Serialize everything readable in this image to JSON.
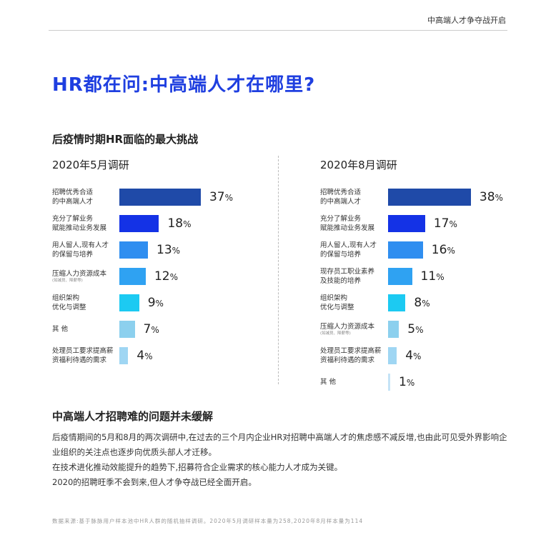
{
  "header": {
    "tag": "中高端人才争夺战开启"
  },
  "main_title": "HR都在问:中高端人才在哪里?",
  "section1_title": "后疫情时期HR面临的最大挑战",
  "chart_data": [
    {
      "type": "bar",
      "title": "2020年5月调研",
      "unit": "%",
      "xlim": [
        0,
        40
      ],
      "categories": [
        "招聘优秀合适\n的中高端人才",
        "充分了解业务\n赋能推动业务发展",
        "用人留人,现有人才\n的保留与培养",
        "压缩人力资源成本",
        "组织架构\n优化与调整",
        "其 他",
        "处理员工要求提高薪\n资福利待遇的需求"
      ],
      "notes": [
        "",
        "",
        "",
        "(如减员、降薪等)",
        "",
        "",
        ""
      ],
      "values": [
        37,
        18,
        13,
        12,
        9,
        7,
        4
      ],
      "colors": [
        "#1f4aa8",
        "#1432e6",
        "#2f8ef0",
        "#2fa2f2",
        "#1ccaf2",
        "#8cd0ee",
        "#9fd6f3"
      ]
    },
    {
      "type": "bar",
      "title": "2020年8月调研",
      "unit": "%",
      "xlim": [
        0,
        40
      ],
      "categories": [
        "招聘优秀合适\n的中高端人才",
        "充分了解业务\n赋能推动业务发展",
        "用人留人,现有人才\n的保留与培养",
        "现存员工职业素养\n及技能的培养",
        "组织架构\n优化与调整",
        "压缩人力资源成本",
        "处理员工要求提高薪\n资福利待遇的需求",
        "其 他"
      ],
      "notes": [
        "",
        "",
        "",
        "",
        "",
        "(如减员、降薪等)",
        "",
        ""
      ],
      "values": [
        38,
        17,
        16,
        11,
        8,
        5,
        4,
        1
      ],
      "colors": [
        "#1f4aa8",
        "#1432e6",
        "#2f8ef0",
        "#2fa2f2",
        "#1ccaf2",
        "#8cd0ee",
        "#9fd6f3",
        "#c5e3f6"
      ]
    }
  ],
  "section2": {
    "title": "中高端人才招聘难的问题并未缓解",
    "paragraphs": [
      "后疫情期间的5月和8月的两次调研中,在过去的三个月内企业HR对招聘中高端人才的焦虑感不减反增,也由此可见受外界影响企业组织的关注点也逐步向优质头部人才迁移。",
      "在技术进化推动效能提升的趋势下,招募符合企业需求的核心能力人才成为关键。",
      "2020的招聘旺季不会到来,但人才争夺战已经全面开启。"
    ]
  },
  "source": "数据来源:基于脉脉用户样本池中HR人群的随机抽样调研。2020年5月调研样本量为258,2020年8月样本量为114"
}
